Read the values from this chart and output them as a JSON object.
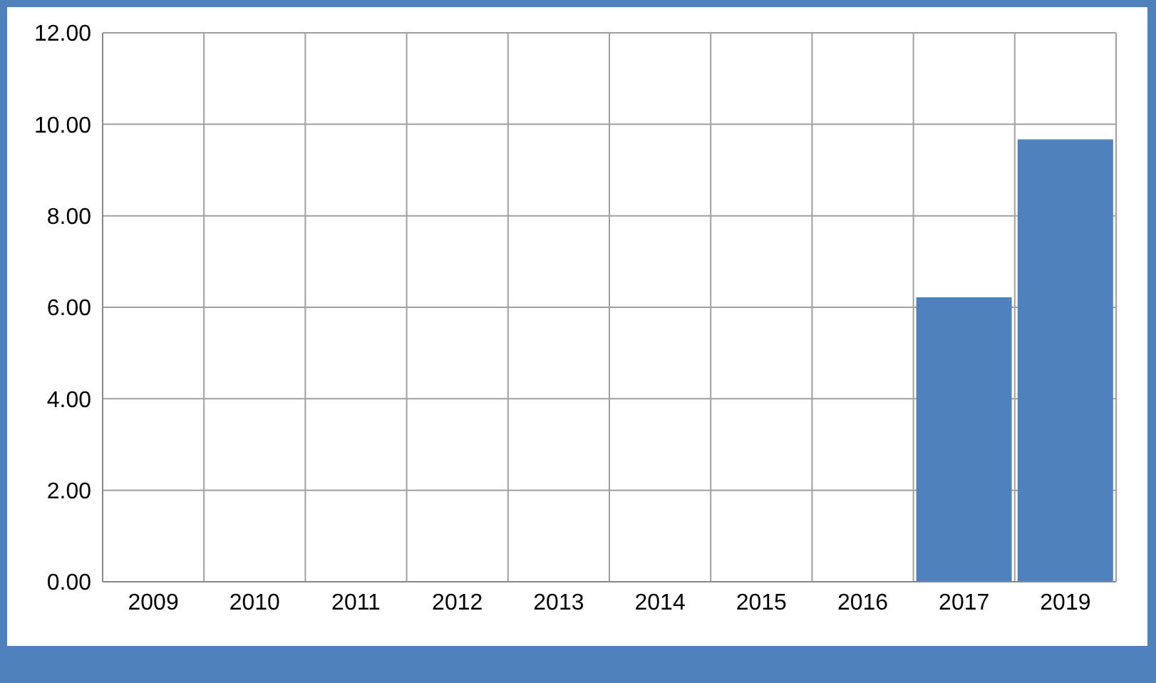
{
  "chart_data": {
    "type": "bar",
    "categories": [
      "2009",
      "2010",
      "2011",
      "2012",
      "2013",
      "2014",
      "2015",
      "2016",
      "2017",
      "2019"
    ],
    "values": [
      null,
      null,
      null,
      null,
      null,
      null,
      null,
      null,
      6.22,
      9.67
    ],
    "color": "#4f81bd",
    "ylim": [
      0,
      12
    ],
    "yticks": [
      {
        "value": 0,
        "label": "0.00"
      },
      {
        "value": 2,
        "label": "2.00"
      },
      {
        "value": 4,
        "label": "4.00"
      },
      {
        "value": 6,
        "label": "6.00"
      },
      {
        "value": 8,
        "label": "8.00"
      },
      {
        "value": 10,
        "label": "10.00"
      },
      {
        "value": 12,
        "label": "12.00"
      }
    ],
    "grid": true
  }
}
